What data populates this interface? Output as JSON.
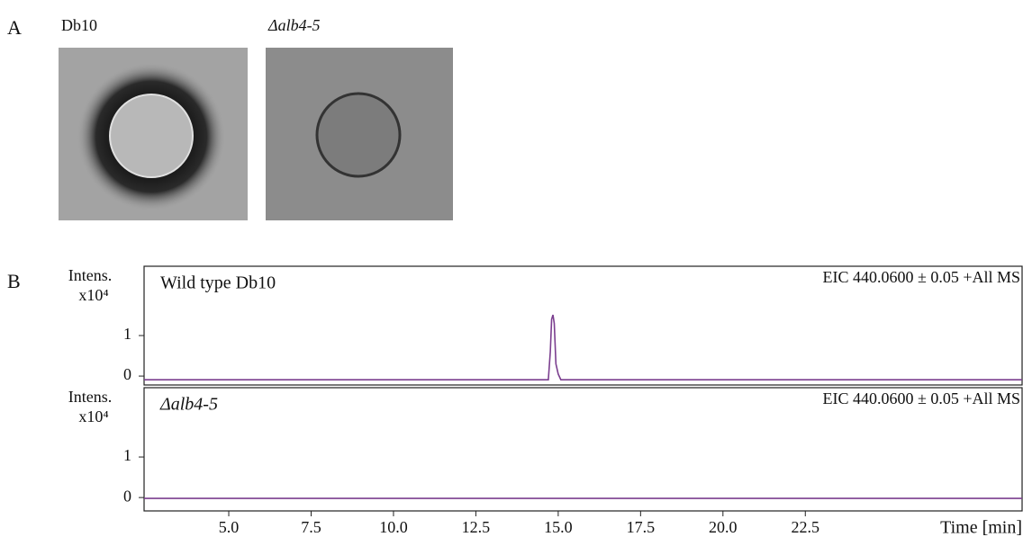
{
  "panel_a": {
    "label": "A",
    "images": [
      {
        "caption": "Db10"
      },
      {
        "caption": "Δalb4-5"
      }
    ]
  },
  "panel_b": {
    "label": "B"
  },
  "chart_data": [
    {
      "type": "line",
      "title": "Wild type Db10",
      "annotation": "EIC 440.0600 ± 0.05 +All MS",
      "y_label": "Intens.",
      "y_unit": "x10⁴",
      "color": "#7b3f8f",
      "x": [
        2.43,
        14.7,
        14.76,
        14.8,
        14.84,
        14.88,
        14.93,
        15.0,
        15.08,
        29.08
      ],
      "values": [
        -0.09,
        -0.09,
        0.6,
        1.4,
        1.51,
        1.3,
        0.3,
        0.05,
        -0.09,
        -0.09
      ],
      "xlim": [
        2.43,
        29.08
      ],
      "ylim": [
        -0.22,
        2.71
      ],
      "yticks": [
        0,
        1
      ]
    },
    {
      "type": "line",
      "title": "Δalb4-5",
      "annotation": "EIC 440.0600 ± 0.05 +All MS",
      "y_label": "Intens.",
      "y_unit": "x10⁴",
      "x_label": "Time [min]",
      "color": "#7b3f8f",
      "x": [
        2.43,
        29.08
      ],
      "values": [
        -0.02,
        -0.02
      ],
      "xlim": [
        2.43,
        29.08
      ],
      "ylim": [
        -0.33,
        2.71
      ],
      "yticks": [
        0,
        1
      ],
      "xticks": [
        {
          "value": 5,
          "label": "5.0"
        },
        {
          "value": 7.5,
          "label": "7.5"
        },
        {
          "value": 10,
          "label": "10.0"
        },
        {
          "value": 12.5,
          "label": "12.5"
        },
        {
          "value": 15,
          "label": "15.0"
        },
        {
          "value": 17.5,
          "label": "17.5"
        },
        {
          "value": 20,
          "label": "20.0"
        },
        {
          "value": 22.5,
          "label": "22.5"
        }
      ]
    }
  ]
}
